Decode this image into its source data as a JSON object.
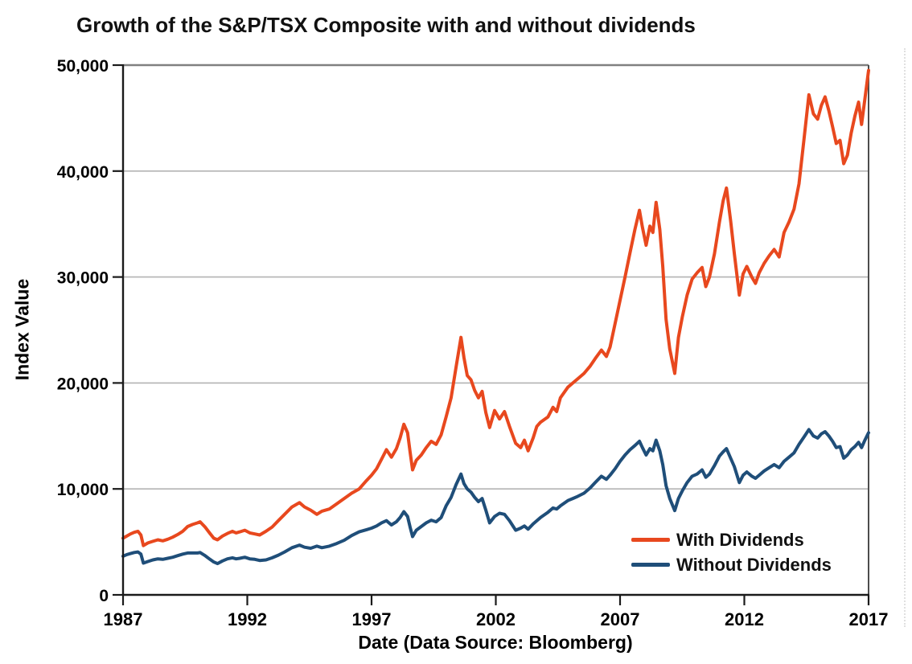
{
  "title": "Growth of the S&P/TSX Composite with and without dividends",
  "axes": {
    "x_title": "Date (Data Source: Bloomberg)",
    "y_title": "Index Value"
  },
  "legend": {
    "items": [
      {
        "label": "With Dividends",
        "color": "#E8481E"
      },
      {
        "label": "Without Dividends",
        "color": "#1F4E79"
      }
    ]
  },
  "chart_data": {
    "type": "line",
    "title": "Growth of the S&P/TSX Composite with and without dividends",
    "xlabel": "Date (Data Source: Bloomberg)",
    "ylabel": "Index Value",
    "xlim": [
      1987,
      2017
    ],
    "ylim": [
      0,
      50000
    ],
    "x_ticks": [
      1987,
      1992,
      1997,
      2002,
      2007,
      2012,
      2017
    ],
    "x_tick_labels": [
      "1987",
      "1992",
      "1997",
      "2002",
      "2007",
      "2012",
      "2017"
    ],
    "y_ticks": [
      0,
      10000,
      20000,
      30000,
      40000,
      50000
    ],
    "y_tick_labels": [
      "0",
      "10,000",
      "20,000",
      "30,000",
      "40,000",
      "50,000"
    ],
    "grid": "horizontal gridlines at each 10,000",
    "grid_color": "#b3b3b3",
    "frame_color": "#808080",
    "axis_color": "#1a1a1a",
    "legend_position": "inside lower right",
    "x": [
      1987.0,
      1987.15,
      1987.3,
      1987.45,
      1987.6,
      1987.72,
      1987.82,
      1988.0,
      1988.2,
      1988.4,
      1988.6,
      1988.8,
      1989.0,
      1989.2,
      1989.4,
      1989.6,
      1989.8,
      1990.0,
      1990.1,
      1990.3,
      1990.5,
      1990.65,
      1990.8,
      1991.0,
      1991.2,
      1991.4,
      1991.55,
      1991.7,
      1991.9,
      1992.1,
      1992.3,
      1992.5,
      1992.75,
      1993.0,
      1993.25,
      1993.5,
      1993.8,
      1994.1,
      1994.3,
      1994.55,
      1994.8,
      1995.0,
      1995.3,
      1995.6,
      1995.9,
      1996.2,
      1996.5,
      1996.8,
      1997.0,
      1997.2,
      1997.4,
      1997.6,
      1997.8,
      1998.0,
      1998.15,
      1998.3,
      1998.45,
      1998.55,
      1998.65,
      1998.8,
      1999.0,
      1999.2,
      1999.4,
      1999.6,
      1999.8,
      2000.0,
      2000.2,
      2000.4,
      2000.6,
      2000.72,
      2000.85,
      2001.0,
      2001.15,
      2001.3,
      2001.45,
      2001.6,
      2001.75,
      2001.95,
      2002.15,
      2002.35,
      2002.55,
      2002.8,
      2003.0,
      2003.15,
      2003.3,
      2003.5,
      2003.65,
      2003.8,
      2004.1,
      2004.3,
      2004.45,
      2004.6,
      2004.9,
      2005.1,
      2005.3,
      2005.55,
      2005.8,
      2006.0,
      2006.25,
      2006.45,
      2006.6,
      2006.8,
      2007.0,
      2007.2,
      2007.4,
      2007.6,
      2007.78,
      2007.9,
      2008.05,
      2008.2,
      2008.32,
      2008.45,
      2008.6,
      2008.72,
      2008.85,
      2009.0,
      2009.2,
      2009.35,
      2009.5,
      2009.7,
      2009.9,
      2010.1,
      2010.3,
      2010.45,
      2010.6,
      2010.8,
      2011.0,
      2011.15,
      2011.28,
      2011.45,
      2011.6,
      2011.8,
      2011.95,
      2012.1,
      2012.3,
      2012.45,
      2012.6,
      2012.8,
      2013.0,
      2013.2,
      2013.4,
      2013.6,
      2013.8,
      2014.0,
      2014.2,
      2014.4,
      2014.6,
      2014.78,
      2014.95,
      2015.1,
      2015.25,
      2015.4,
      2015.55,
      2015.7,
      2015.85,
      2016.0,
      2016.15,
      2016.3,
      2016.45,
      2016.6,
      2016.72,
      2016.85,
      2017.0
    ],
    "series": [
      {
        "name": "With Dividends",
        "color": "#E8481E",
        "values": [
          5350,
          5550,
          5750,
          5900,
          6000,
          5650,
          4650,
          4900,
          5050,
          5200,
          5100,
          5250,
          5450,
          5700,
          6000,
          6450,
          6650,
          6800,
          6900,
          6400,
          5800,
          5350,
          5200,
          5550,
          5800,
          6000,
          5850,
          5950,
          6100,
          5850,
          5750,
          5650,
          6000,
          6400,
          7000,
          7600,
          8300,
          8700,
          8300,
          8000,
          7600,
          7900,
          8100,
          8600,
          9100,
          9600,
          10000,
          10800,
          11300,
          11900,
          12800,
          13700,
          13000,
          13800,
          14800,
          16100,
          15300,
          13500,
          11800,
          12700,
          13200,
          13900,
          14500,
          14200,
          15100,
          16800,
          18600,
          21500,
          24300,
          22400,
          20700,
          20300,
          19300,
          18600,
          19200,
          17200,
          15800,
          17400,
          16600,
          17300,
          15900,
          14300,
          13900,
          14600,
          13600,
          14800,
          15900,
          16300,
          16800,
          17700,
          17300,
          18600,
          19600,
          20000,
          20400,
          20900,
          21600,
          22300,
          23100,
          22500,
          23400,
          25600,
          27800,
          30000,
          32300,
          34500,
          36300,
          34700,
          33000,
          34800,
          34200,
          37050,
          34500,
          31000,
          26000,
          23200,
          20900,
          24300,
          26200,
          28300,
          29800,
          30400,
          30900,
          29100,
          30000,
          32200,
          35200,
          37200,
          38400,
          35300,
          32200,
          28300,
          30300,
          31000,
          30000,
          29400,
          30400,
          31300,
          32000,
          32600,
          31900,
          34200,
          35200,
          36400,
          38800,
          43000,
          47200,
          45400,
          44900,
          46200,
          47000,
          45700,
          44200,
          42600,
          42900,
          40700,
          41500,
          43600,
          45200,
          46500,
          44400,
          46800,
          49500
        ]
      },
      {
        "name": "Without Dividends",
        "color": "#1F4E79",
        "values": [
          3650,
          3800,
          3900,
          4000,
          4050,
          3850,
          3000,
          3150,
          3300,
          3400,
          3350,
          3450,
          3550,
          3700,
          3850,
          3950,
          3950,
          3950,
          4000,
          3700,
          3350,
          3100,
          2950,
          3200,
          3400,
          3500,
          3400,
          3450,
          3550,
          3400,
          3350,
          3250,
          3300,
          3500,
          3750,
          4050,
          4450,
          4700,
          4500,
          4400,
          4600,
          4450,
          4600,
          4850,
          5150,
          5600,
          5950,
          6150,
          6300,
          6500,
          6800,
          7000,
          6600,
          6900,
          7300,
          7850,
          7400,
          6400,
          5500,
          6100,
          6450,
          6800,
          7050,
          6900,
          7300,
          8400,
          9200,
          10400,
          11400,
          10500,
          10000,
          9700,
          9200,
          8800,
          9100,
          8000,
          6800,
          7400,
          7700,
          7600,
          7000,
          6100,
          6300,
          6500,
          6200,
          6700,
          7000,
          7300,
          7800,
          8200,
          8100,
          8400,
          8900,
          9100,
          9300,
          9600,
          10100,
          10600,
          11200,
          10900,
          11300,
          11900,
          12600,
          13200,
          13700,
          14100,
          14500,
          13900,
          13200,
          13800,
          13600,
          14600,
          13600,
          12300,
          10300,
          9100,
          7950,
          9100,
          9800,
          10600,
          11200,
          11400,
          11800,
          11100,
          11400,
          12200,
          13100,
          13500,
          13800,
          12900,
          12100,
          10600,
          11300,
          11600,
          11200,
          11000,
          11300,
          11700,
          12000,
          12300,
          12000,
          12600,
          13000,
          13400,
          14200,
          14900,
          15600,
          15000,
          14800,
          15200,
          15400,
          15000,
          14500,
          13900,
          14000,
          12900,
          13200,
          13700,
          14000,
          14400,
          13900,
          14600,
          15300
        ]
      }
    ]
  }
}
